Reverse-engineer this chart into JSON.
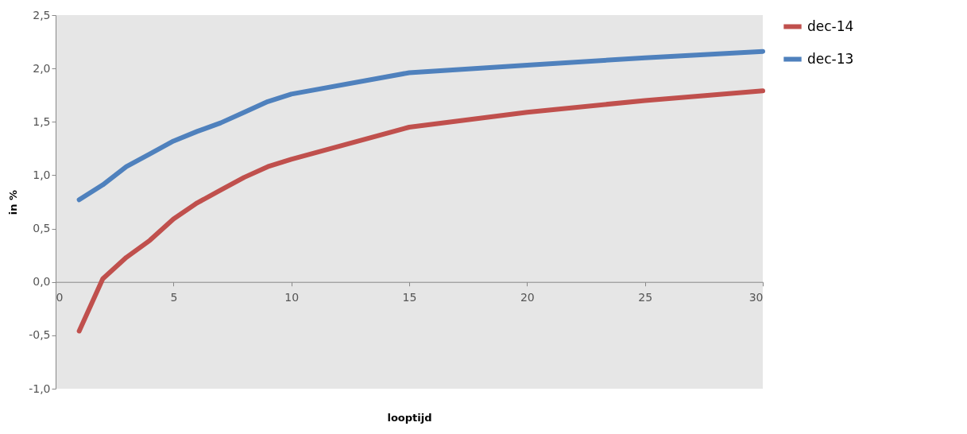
{
  "chart_data": {
    "type": "line",
    "xlabel": "looptijd",
    "ylabel": "in %",
    "x": [
      1,
      2,
      3,
      4,
      5,
      6,
      7,
      8,
      9,
      10,
      15,
      20,
      25,
      30
    ],
    "series": [
      {
        "name": "dec-14",
        "color": "#c0504d",
        "values": [
          -0.46,
          0.03,
          0.23,
          0.39,
          0.59,
          0.74,
          0.86,
          0.98,
          1.08,
          1.15,
          1.45,
          1.59,
          1.7,
          1.79
        ]
      },
      {
        "name": "dec-13",
        "color": "#4f81bd",
        "values": [
          0.77,
          0.91,
          1.08,
          1.2,
          1.32,
          1.41,
          1.49,
          1.59,
          1.69,
          1.76,
          1.96,
          2.03,
          2.1,
          2.16
        ]
      }
    ],
    "xlim": [
      0,
      30
    ],
    "xticks": [
      0,
      5,
      10,
      15,
      20,
      25,
      30
    ],
    "ylim": [
      -1,
      2.5
    ],
    "yticks": [
      {
        "value": -1,
        "label": "-1,0"
      },
      {
        "value": -0.5,
        "label": "-0,5"
      },
      {
        "value": 0,
        "label": "0,0"
      },
      {
        "value": 0.5,
        "label": "0,5"
      },
      {
        "value": 1,
        "label": "1,0"
      },
      {
        "value": 1.5,
        "label": "1,5"
      },
      {
        "value": 2,
        "label": "2,0"
      },
      {
        "value": 2.5,
        "label": "2,5"
      }
    ],
    "legend": "right",
    "grid": false,
    "marker": "none",
    "line_style": "solid"
  }
}
